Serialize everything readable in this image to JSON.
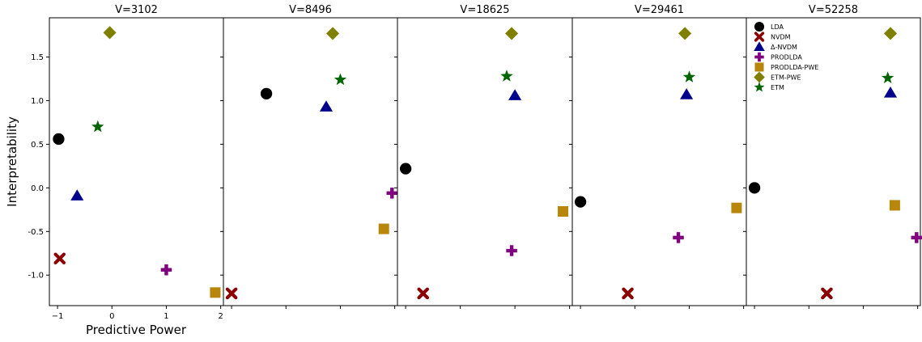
{
  "chart_data": {
    "type": "scatter",
    "ylabel": "Interpretability",
    "xlabel": "Predictive Power",
    "ylim": [
      -1.35,
      1.95
    ],
    "yticks": [
      "-1.0",
      "-0.5",
      "0.0",
      "0.5",
      "1.0",
      "1.5"
    ],
    "ytick_values": [
      -1.0,
      -0.5,
      0.0,
      0.5,
      1.0,
      1.5
    ],
    "first_panel_xticks": [
      "−1",
      "0",
      "1",
      "2"
    ],
    "first_panel_xtick_values": [
      -1,
      0,
      1,
      2
    ],
    "legend_location": "upper-left of last panel",
    "series": [
      {
        "name": "LDA",
        "marker": "circle",
        "color": "#000000"
      },
      {
        "name": "NVDM",
        "marker": "x",
        "color": "#8b0000"
      },
      {
        "name": "Δ-NVDM",
        "marker": "triangle",
        "color": "#00008b"
      },
      {
        "name": "PRODLDA",
        "marker": "plus",
        "color": "#800080"
      },
      {
        "name": "PRODLDA-PWE",
        "marker": "square",
        "color": "#b8860b"
      },
      {
        "name": "ETM-PWE",
        "marker": "diamond",
        "color": "#808000"
      },
      {
        "name": "ETM",
        "marker": "star",
        "color": "#006400"
      }
    ],
    "panels": [
      {
        "title": "V=3102",
        "xlim": [
          -1.15,
          2.05
        ],
        "points": {
          "LDA": [
            -0.98,
            0.56
          ],
          "NVDM": [
            -0.96,
            -0.81
          ],
          "Δ-NVDM": [
            -0.64,
            -0.09
          ],
          "PRODLDA": [
            1.0,
            -0.94
          ],
          "PRODLDA-PWE": [
            1.9,
            -1.2
          ],
          "ETM-PWE": [
            -0.04,
            1.78
          ],
          "ETM": [
            -0.26,
            0.7
          ]
        }
      },
      {
        "title": "V=8496",
        "xlim": [
          -1.15,
          2.05
        ],
        "points": {
          "LDA": [
            -0.36,
            1.08
          ],
          "NVDM": [
            -1.0,
            -1.21
          ],
          "Δ-NVDM": [
            0.74,
            0.93
          ],
          "PRODLDA": [
            1.95,
            -0.06
          ],
          "PRODLDA-PWE": [
            1.8,
            -0.47
          ],
          "ETM-PWE": [
            0.86,
            1.77
          ],
          "ETM": [
            1.0,
            1.24
          ]
        }
      },
      {
        "title": "V=18625",
        "xlim": [
          -1.15,
          2.05
        ],
        "points": {
          "LDA": [
            -1.0,
            0.22
          ],
          "NVDM": [
            -0.68,
            -1.21
          ],
          "Δ-NVDM": [
            1.0,
            1.06
          ],
          "PRODLDA": [
            0.94,
            -0.72
          ],
          "PRODLDA-PWE": [
            1.88,
            -0.27
          ],
          "ETM-PWE": [
            0.94,
            1.77
          ],
          "ETM": [
            0.85,
            1.28
          ]
        }
      },
      {
        "title": "V=29461",
        "xlim": [
          -1.15,
          2.05
        ],
        "points": {
          "LDA": [
            -1.0,
            -0.16
          ],
          "NVDM": [
            -0.13,
            -1.21
          ],
          "Δ-NVDM": [
            0.95,
            1.07
          ],
          "PRODLDA": [
            0.8,
            -0.57
          ],
          "PRODLDA-PWE": [
            1.87,
            -0.23
          ],
          "ETM-PWE": [
            0.92,
            1.77
          ],
          "ETM": [
            1.0,
            1.27
          ]
        }
      },
      {
        "title": "V=52258",
        "xlim": [
          -1.15,
          2.05
        ],
        "points": {
          "LDA": [
            -1.0,
            0.0
          ],
          "NVDM": [
            0.33,
            -1.21
          ],
          "Δ-NVDM": [
            1.5,
            1.09
          ],
          "PRODLDA": [
            1.98,
            -0.57
          ],
          "PRODLDA-PWE": [
            1.58,
            -0.2
          ],
          "ETM-PWE": [
            1.5,
            1.77
          ],
          "ETM": [
            1.45,
            1.26
          ]
        }
      }
    ]
  }
}
